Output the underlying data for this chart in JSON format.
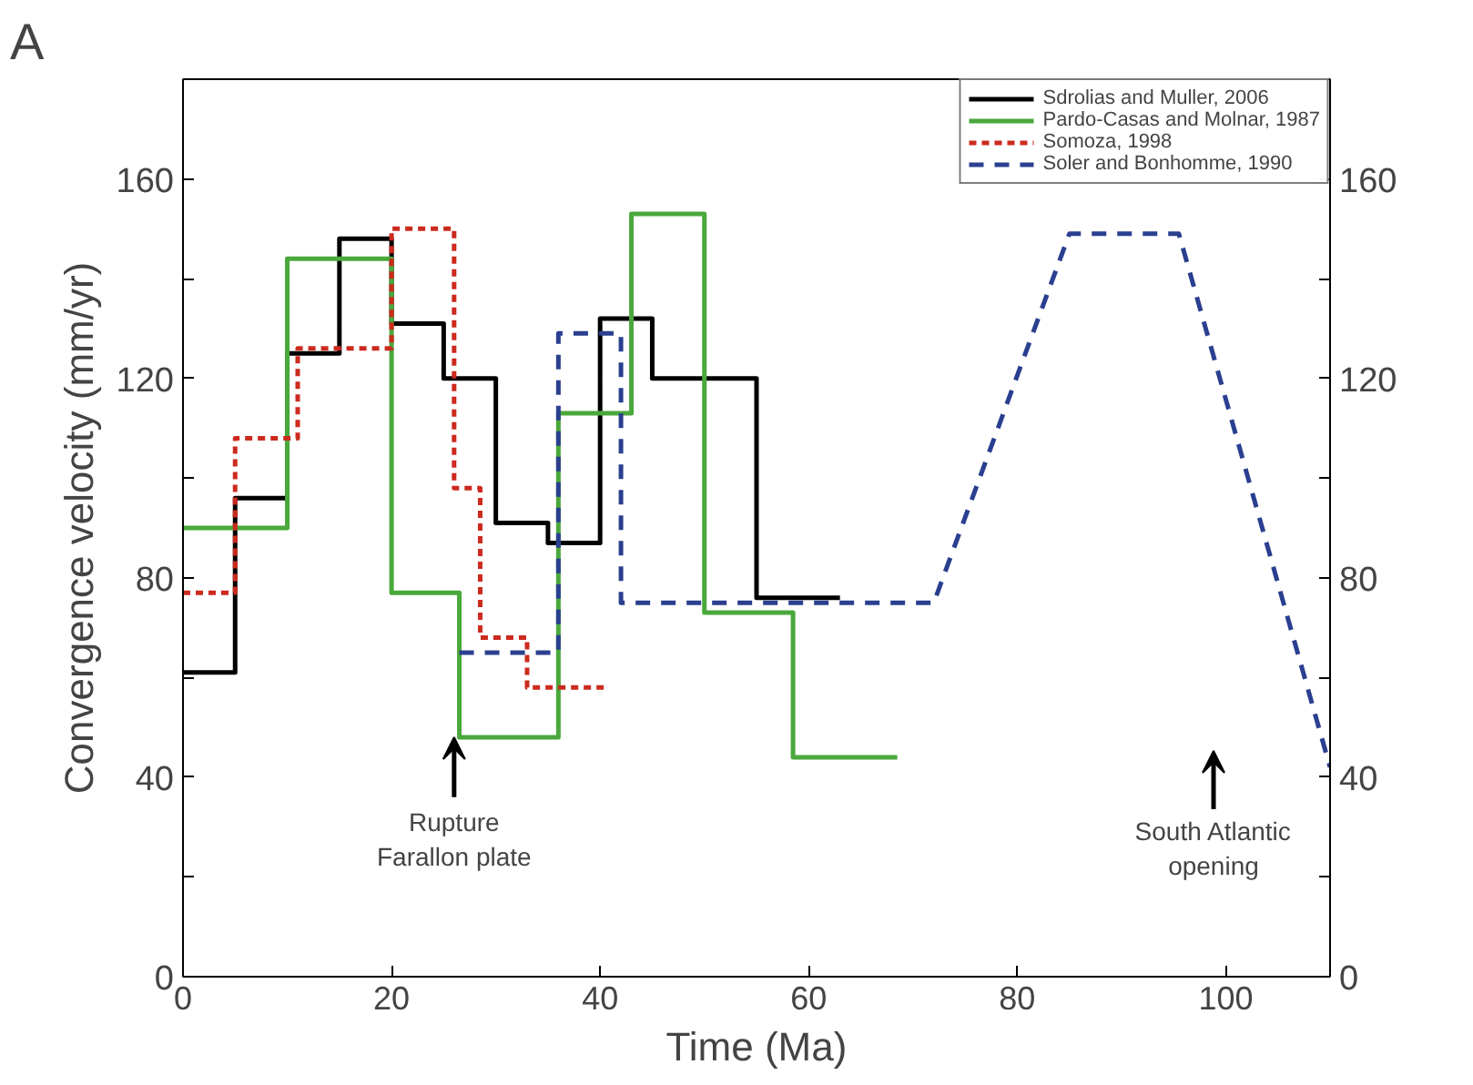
{
  "chart_data": {
    "type": "step",
    "title": "A",
    "xlabel": "Time (Ma)",
    "ylabel": "Convergence velocity (mm/yr)",
    "xlim": [
      0,
      110
    ],
    "xticks": [
      0,
      20,
      40,
      60,
      80,
      100
    ],
    "ylim": [
      0,
      180
    ],
    "yticks": [
      0,
      {
        "value": 20,
        "label": null
      },
      40,
      {
        "value": 60,
        "label": null
      },
      80,
      {
        "value": 100,
        "label": null
      },
      120,
      {
        "value": 140,
        "label": null
      },
      160
    ],
    "y2lim": [
      0,
      180
    ],
    "y2ticks": [
      0,
      {
        "value": 20,
        "label": null
      },
      40,
      {
        "value": 60,
        "label": null
      },
      80,
      {
        "value": 100,
        "label": null
      },
      120,
      {
        "value": 140,
        "label": null
      },
      160
    ],
    "legend": "top right",
    "series": [
      {
        "name": "Sdrolias and Muller, 2006",
        "color": "#000000",
        "line_style": "solid",
        "x": [
          0,
          5,
          10,
          15,
          20,
          25,
          30,
          35,
          40,
          45,
          55,
          63
        ],
        "values": [
          61,
          96,
          125,
          148,
          131,
          120,
          91,
          87,
          132,
          120,
          76,
          76
        ]
      },
      {
        "name": "Pardo-Casas and Molnar, 1987",
        "color": "#4aa83c",
        "line_style": "solid",
        "x": [
          0,
          10,
          20,
          26.5,
          36,
          43,
          50,
          58.5,
          68.5
        ],
        "values": [
          90,
          144,
          77,
          48,
          113,
          153,
          73,
          44,
          44
        ]
      },
      {
        "name": "Somoza, 1998",
        "color": "#cc2a1e",
        "line_style": "dotted",
        "x": [
          0,
          5,
          11,
          20,
          26,
          28.5,
          33,
          40.5
        ],
        "values": [
          77,
          108,
          126,
          150,
          98,
          68,
          58,
          58
        ]
      },
      {
        "name": "Soler and Bonhomme, 1990",
        "type": "line",
        "color": "#2a3f8f",
        "line_style": "dashed",
        "x": [
          26.5,
          36,
          36,
          42,
          42,
          72,
          85,
          95.5,
          110
        ],
        "values": [
          65,
          65,
          129,
          129,
          75,
          75,
          149,
          149,
          42
        ]
      }
    ],
    "annotations": [
      {
        "text": "Rupture\nFarallon plate",
        "x": 26,
        "y": 48
      },
      "South Atlantic\nopening"
    ]
  }
}
